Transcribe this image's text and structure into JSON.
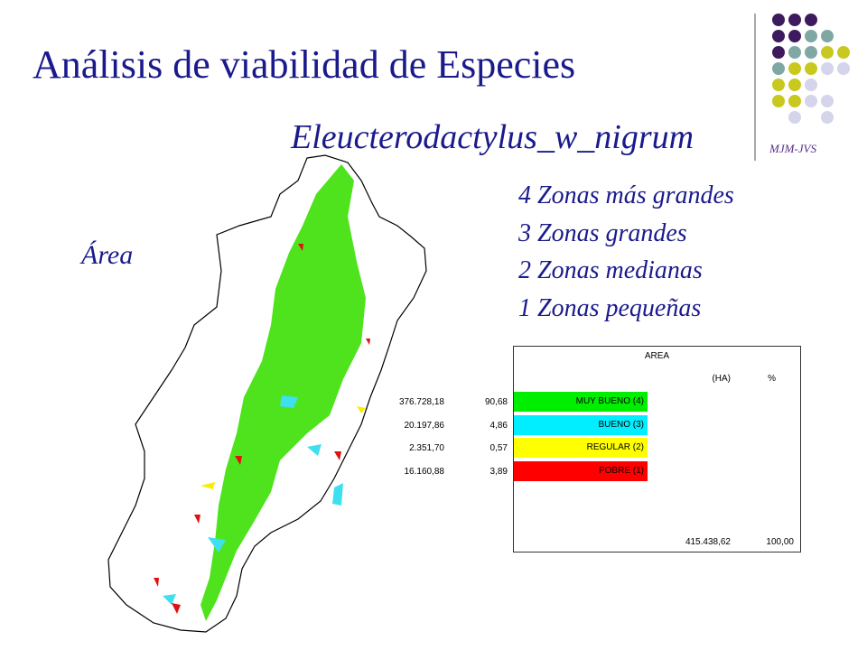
{
  "header": {
    "title": "Análisis de viabilidad de Especies",
    "subtitle": "Eleucterodactylus_w_nigrum",
    "logo": "MJM-JVS"
  },
  "map_label": "Área",
  "zones": [
    "4 Zonas más grandes",
    "3 Zonas grandes",
    "2 Zonas medianas",
    "1 Zonas pequeñas"
  ],
  "table": {
    "title": "AREA",
    "columns": [
      "(HA)",
      "%"
    ],
    "rows": [
      [
        "MUY BUENO (4)",
        "376.728,18",
        "90,68"
      ],
      [
        "BUENO (3)",
        "20.197,86",
        "4,86"
      ],
      [
        "REGULAR (2)",
        "2.351,70",
        "0,57"
      ],
      [
        "POBRE (1)",
        "16.160,88",
        "3,89"
      ]
    ],
    "total": [
      "415.438,62",
      "100,00"
    ]
  }
}
